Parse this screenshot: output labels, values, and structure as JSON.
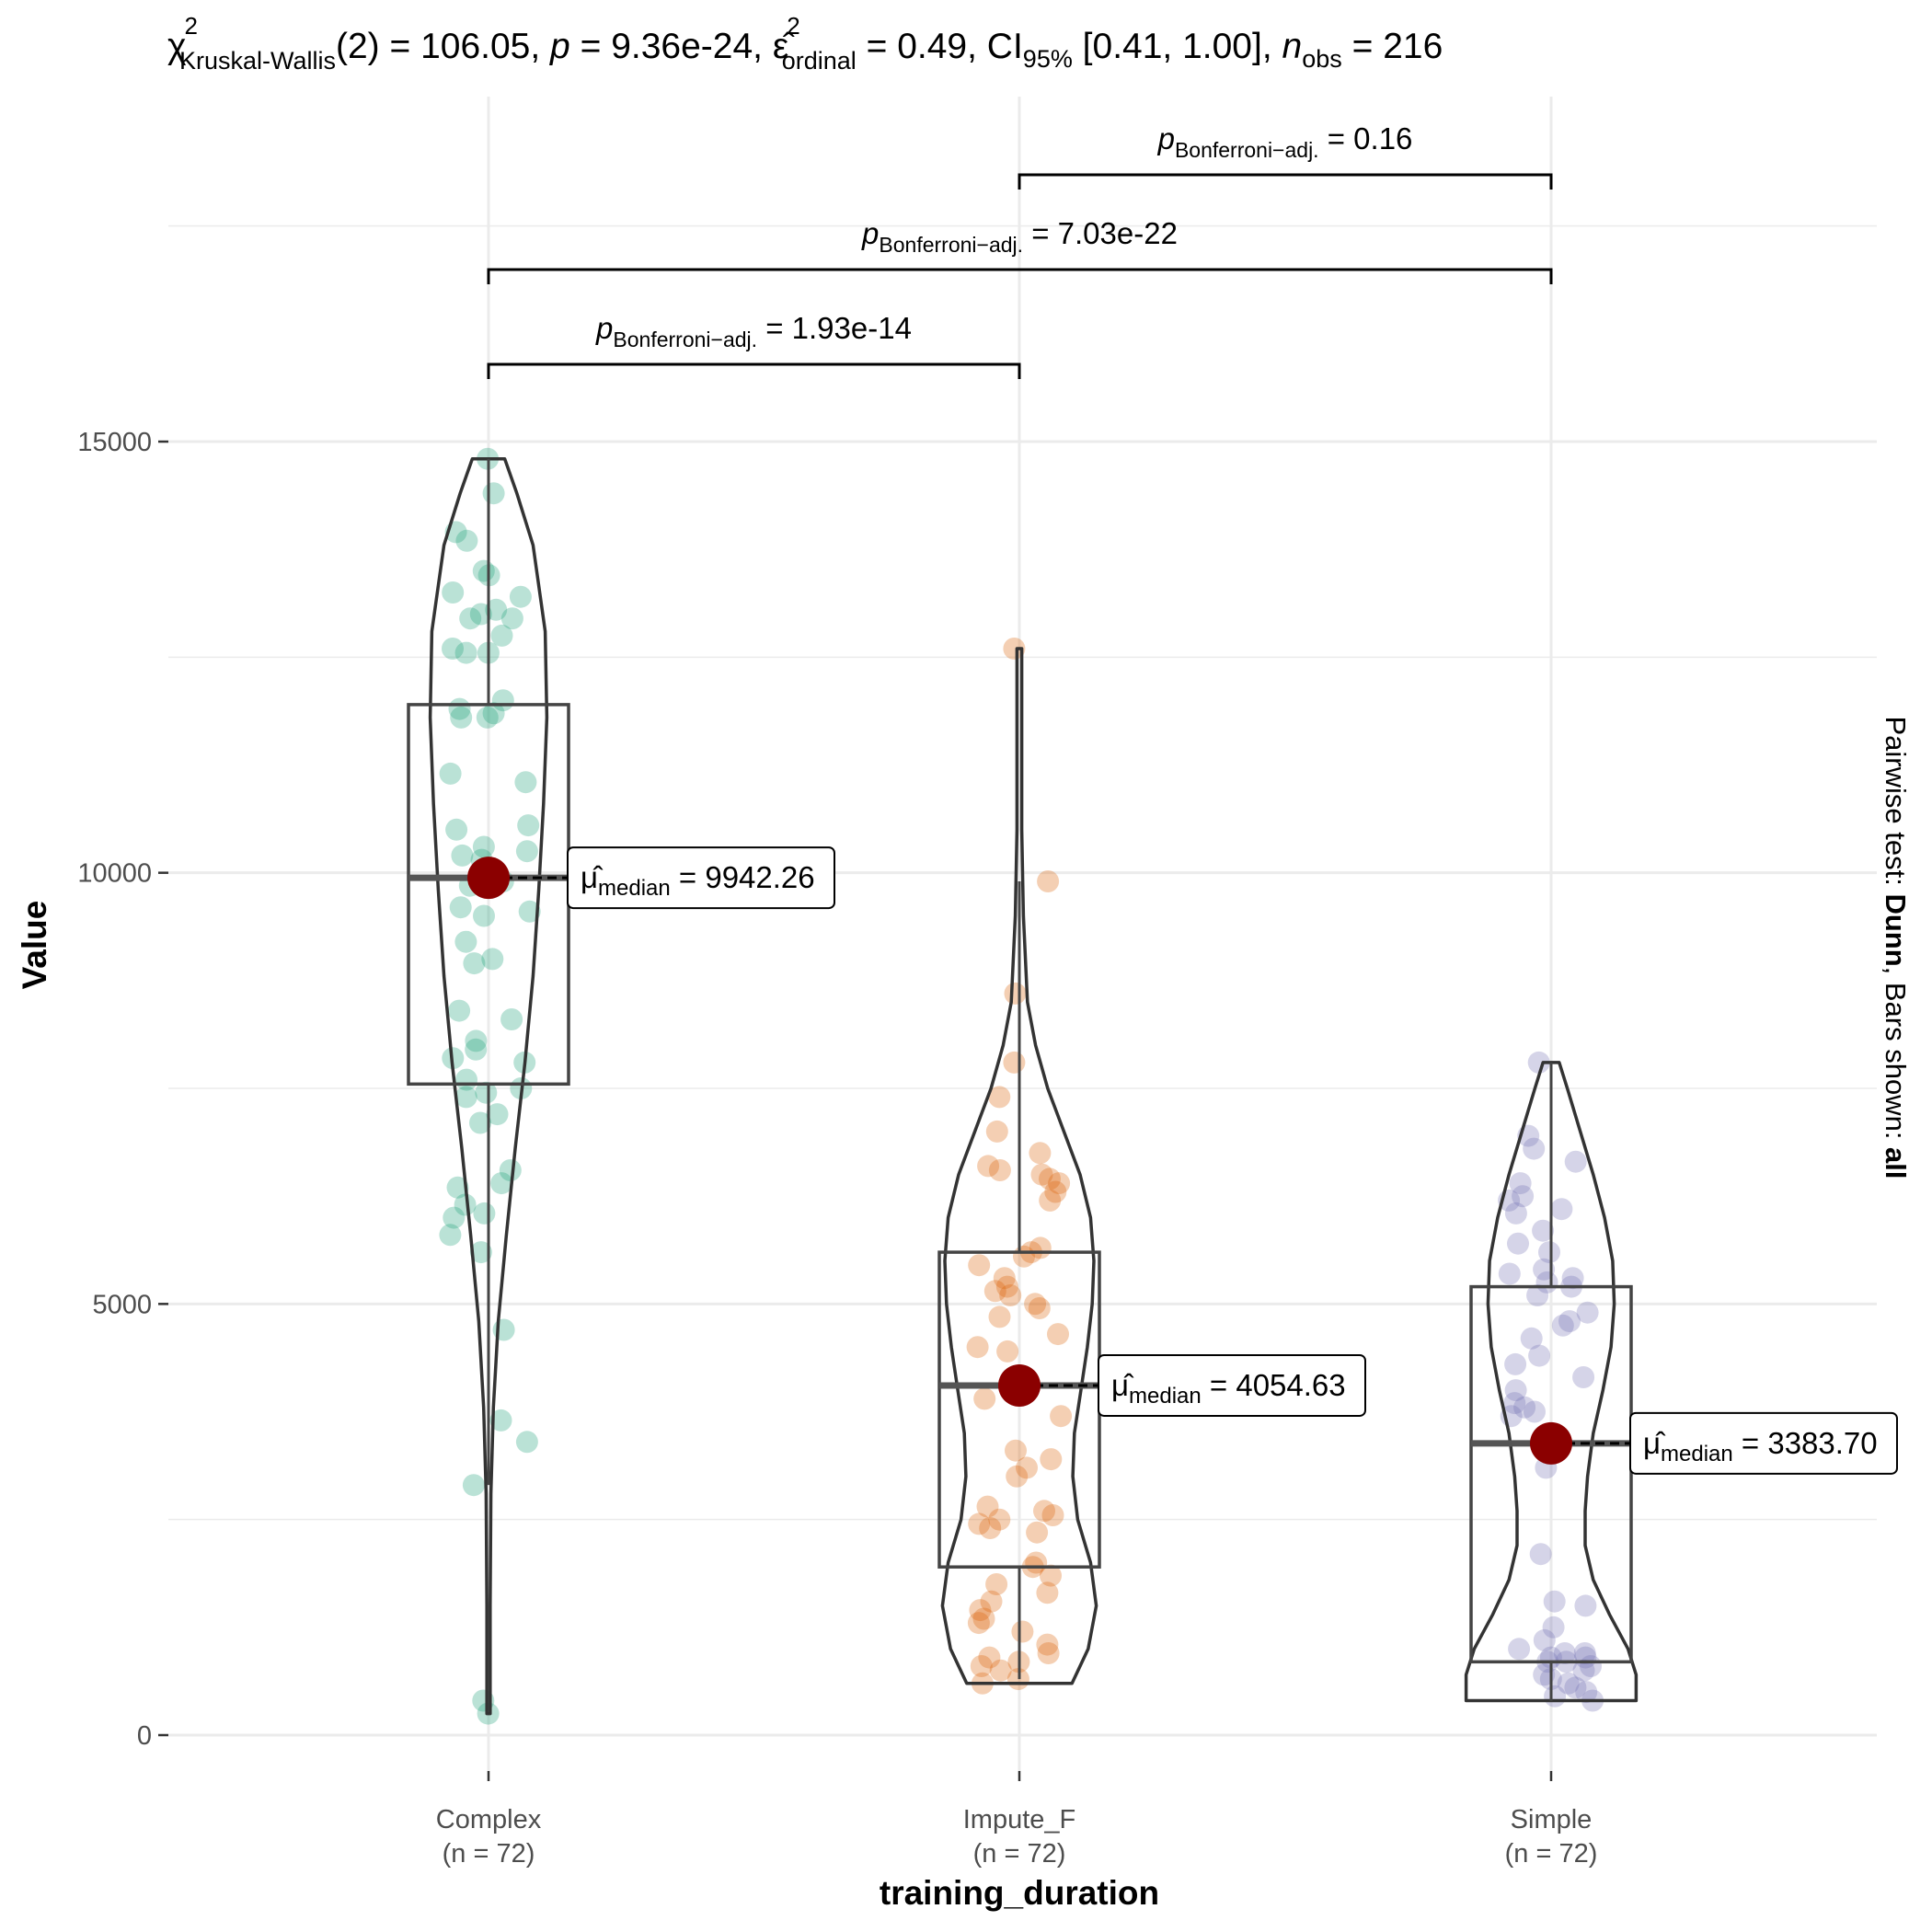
{
  "chart_data": {
    "type": "violin-box-scatter",
    "title": {
      "chi": "χ",
      "chi_sup": "2",
      "chi_sub": "Kruskal-Wallis",
      "part1": "(2) = 106.05, ",
      "p_sym": "p",
      "part2": " = 9.36e-24, ",
      "eps": "ε̂",
      "eps_sup": "2",
      "eps_sub": "ordinal",
      "part3": " = 0.49, CI",
      "ci_sub": "95%",
      "part4": " [0.41, 1.00], ",
      "n_sym": "n",
      "n_sub": "obs",
      "part5": " = 216"
    },
    "xlabel": "training_duration",
    "ylabel": "Value",
    "caption": {
      "prefix": "Pairwise test: ",
      "test": "Dunn",
      "middle": ", Bars shown: ",
      "bars": "all"
    },
    "ylim": [
      -300,
      18000
    ],
    "y_ticks": [
      0,
      5000,
      10000,
      15000
    ],
    "y_tick_labels": [
      "0",
      "5000",
      "10000",
      "15000"
    ],
    "grid": true,
    "groups": [
      {
        "name": "Complex",
        "n_label": "(n = 72)",
        "color": "#1b9e77",
        "median": 9942.26,
        "median_label": "= 9942.26",
        "box": {
          "q1": 7550,
          "q3": 11950,
          "whisker_low": 2900,
          "whisker_high": 14800
        },
        "violin": {
          "ymin": 250,
          "ymax": 14800,
          "profile": [
            [
              250,
              0.02
            ],
            [
              1500,
              0.02
            ],
            [
              2800,
              0.03
            ],
            [
              3800,
              0.06
            ],
            [
              4800,
              0.12
            ],
            [
              5800,
              0.22
            ],
            [
              6800,
              0.33
            ],
            [
              7800,
              0.45
            ],
            [
              8800,
              0.55
            ],
            [
              9800,
              0.62
            ],
            [
              10800,
              0.68
            ],
            [
              11800,
              0.72
            ],
            [
              12800,
              0.7
            ],
            [
              13800,
              0.55
            ],
            [
              14400,
              0.35
            ],
            [
              14800,
              0.2
            ]
          ]
        },
        "points": [
          14800,
          14400,
          13950,
          13850,
          13500,
          13450,
          13250,
          13200,
          13050,
          13000,
          12950,
          12950,
          12750,
          12600,
          12550,
          12550,
          12000,
          11900,
          11850,
          11800,
          11800,
          11150,
          11050,
          10550,
          10500,
          10300,
          10250,
          10200,
          10150,
          10000,
          9900,
          9850,
          9600,
          9550,
          9500,
          9200,
          9000,
          8950,
          8400,
          8300,
          8050,
          7950,
          7850,
          7800,
          7600,
          7500,
          7450,
          7400,
          7200,
          7100,
          6550,
          6400,
          6350,
          6150,
          6050,
          6000,
          5800,
          5600,
          4700,
          3650,
          3400,
          2900,
          400,
          250
        ]
      },
      {
        "name": "Impute_F",
        "n_label": "(n = 72)",
        "color": "#d95f02",
        "median": 4054.63,
        "median_label": "= 4054.63",
        "box": {
          "q1": 1950,
          "q3": 5600,
          "whisker_low": 650,
          "whisker_high": 9900
        },
        "violin": {
          "ymin": 600,
          "ymax": 12600,
          "profile": [
            [
              600,
              0.65
            ],
            [
              1000,
              0.85
            ],
            [
              1500,
              0.95
            ],
            [
              2000,
              0.88
            ],
            [
              2500,
              0.72
            ],
            [
              3000,
              0.66
            ],
            [
              3500,
              0.68
            ],
            [
              4000,
              0.76
            ],
            [
              4500,
              0.84
            ],
            [
              5000,
              0.9
            ],
            [
              5500,
              0.92
            ],
            [
              6000,
              0.88
            ],
            [
              6500,
              0.75
            ],
            [
              7000,
              0.55
            ],
            [
              7500,
              0.35
            ],
            [
              8000,
              0.2
            ],
            [
              8500,
              0.1
            ],
            [
              9500,
              0.05
            ],
            [
              10500,
              0.03
            ],
            [
              11500,
              0.03
            ],
            [
              12600,
              0.03
            ]
          ]
        },
        "points": [
          12600,
          9900,
          8600,
          7800,
          7400,
          7000,
          6750,
          6600,
          6550,
          6500,
          6450,
          6400,
          6300,
          6200,
          5650,
          5600,
          5550,
          5450,
          5300,
          5200,
          5150,
          5100,
          5000,
          4950,
          4850,
          4650,
          4500,
          4450,
          4100,
          4050,
          3900,
          3700,
          3300,
          3200,
          3100,
          3000,
          2650,
          2600,
          2550,
          2500,
          2450,
          2400,
          2350,
          2000,
          1950,
          1850,
          1750,
          1650,
          1550,
          1450,
          1350,
          1300,
          1200,
          1050,
          950,
          900,
          850,
          800,
          750,
          650,
          600
        ]
      },
      {
        "name": "Simple",
        "n_label": "(n = 72)",
        "color": "#7570b3",
        "median": 3383.7,
        "median_label": "= 3383.70",
        "box": {
          "q1": 850,
          "q3": 5200,
          "whisker_low": 400,
          "whisker_high": 7800
        },
        "violin": {
          "ymin": 400,
          "ymax": 7800,
          "profile": [
            [
              400,
              1.05
            ],
            [
              700,
              1.05
            ],
            [
              1000,
              0.95
            ],
            [
              1400,
              0.72
            ],
            [
              1800,
              0.52
            ],
            [
              2200,
              0.42
            ],
            [
              2600,
              0.42
            ],
            [
              3000,
              0.45
            ],
            [
              3500,
              0.52
            ],
            [
              4000,
              0.64
            ],
            [
              4500,
              0.74
            ],
            [
              5000,
              0.78
            ],
            [
              5500,
              0.76
            ],
            [
              6000,
              0.66
            ],
            [
              6500,
              0.52
            ],
            [
              7000,
              0.36
            ],
            [
              7500,
              0.2
            ],
            [
              7800,
              0.1
            ]
          ]
        },
        "points": [
          7800,
          6950,
          6800,
          6650,
          6400,
          6250,
          6200,
          6100,
          6050,
          5850,
          5700,
          5600,
          5400,
          5350,
          5300,
          5250,
          5200,
          5100,
          4900,
          4800,
          4750,
          4600,
          4400,
          4300,
          4150,
          4000,
          3850,
          3800,
          3750,
          3700,
          3400,
          3100,
          2100,
          1550,
          1500,
          1250,
          1100,
          1000,
          950,
          950,
          900,
          900,
          850,
          850,
          800,
          750,
          700,
          650,
          600,
          550,
          500,
          450,
          400
        ]
      }
    ],
    "comparisons": [
      {
        "from": 0,
        "to": 1,
        "p_sym": "p",
        "p_sub": "Bonferroni−adj.",
        "value": " = 1.93e-14"
      },
      {
        "from": 0,
        "to": 2,
        "p_sym": "p",
        "p_sub": "Bonferroni−adj.",
        "value": " = 7.03e-22"
      },
      {
        "from": 1,
        "to": 2,
        "p_sym": "p",
        "p_sub": "Bonferroni−adj.",
        "value": " = 0.16"
      }
    ],
    "median_symbol": "μ̂",
    "median_sub": "median"
  }
}
